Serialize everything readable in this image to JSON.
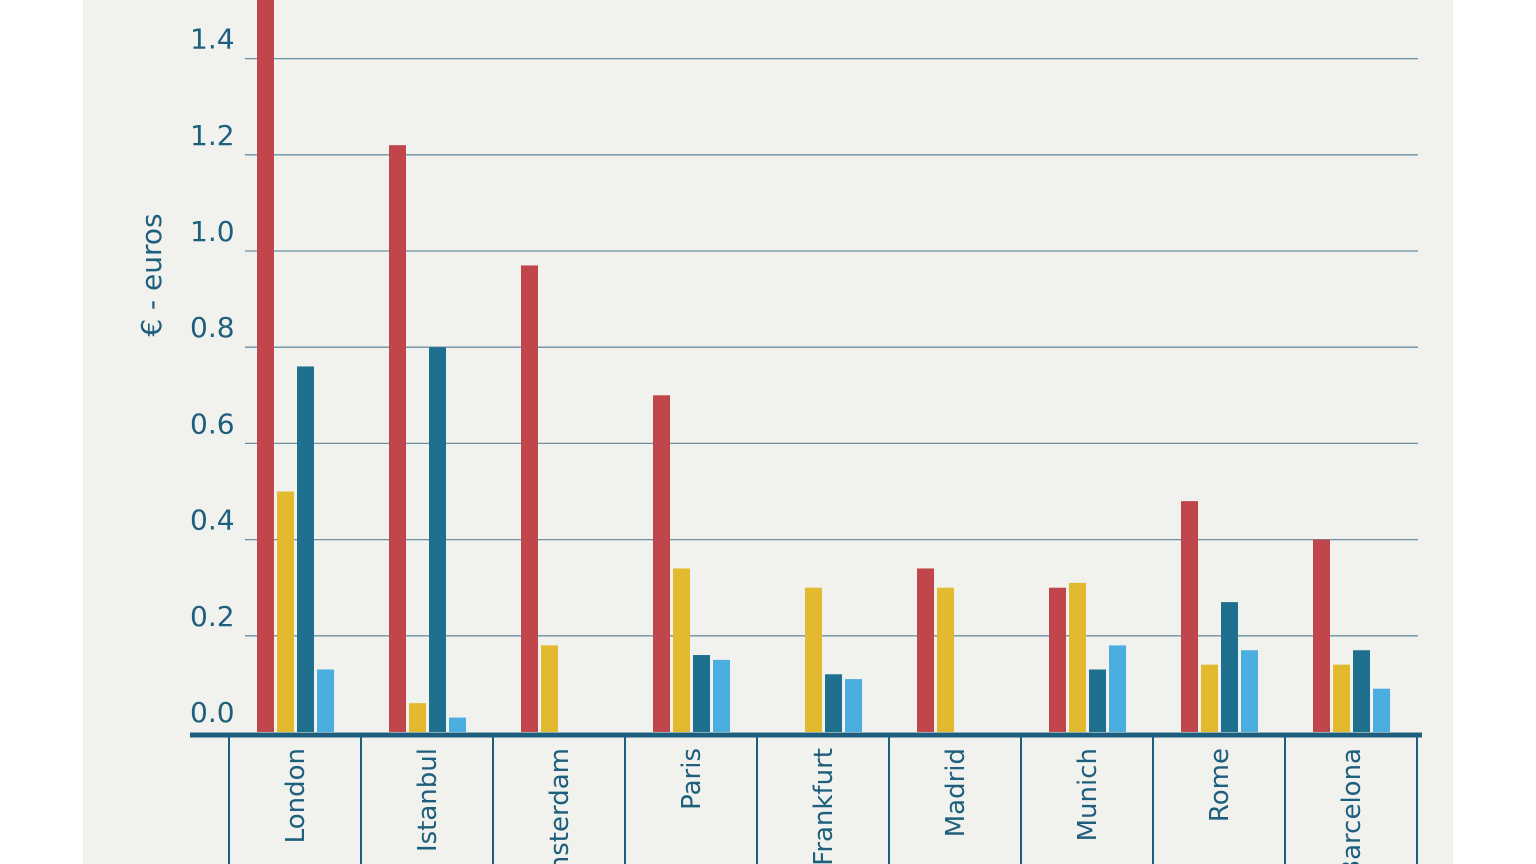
{
  "chart_data": {
    "type": "bar",
    "ylabel": "€ - euros",
    "ylim": [
      0,
      1.55
    ],
    "yticks": [
      "0.0",
      "0.2",
      "0.4",
      "0.6",
      "0.8",
      "1.0",
      "1.2",
      "1.4"
    ],
    "categories": [
      "London",
      "Istanbul",
      "Amsterdam",
      "Paris",
      "Frankfurt",
      "Madrid",
      "Munich",
      "Rome",
      "Barcelona"
    ],
    "series": [
      {
        "color": "#c0464b",
        "values": [
          1.6,
          1.22,
          0.97,
          0.7,
          null,
          0.34,
          0.3,
          0.48,
          0.4
        ]
      },
      {
        "color": "#e3b930",
        "values": [
          0.5,
          0.06,
          0.18,
          0.34,
          0.3,
          0.3,
          0.31,
          0.14,
          0.14
        ]
      },
      {
        "color": "#1f6f8e",
        "values": [
          0.76,
          0.8,
          null,
          0.16,
          0.12,
          null,
          0.13,
          0.27,
          0.17
        ]
      },
      {
        "color": "#4aaee0",
        "values": [
          0.13,
          0.03,
          null,
          0.15,
          0.11,
          null,
          0.18,
          0.17,
          0.09
        ]
      }
    ],
    "grid": true,
    "colors": {
      "panel": "#f1f1ed",
      "grid": "#6d8fa2",
      "axis": "#1e5f7e",
      "text": "#1e5f7e"
    }
  }
}
